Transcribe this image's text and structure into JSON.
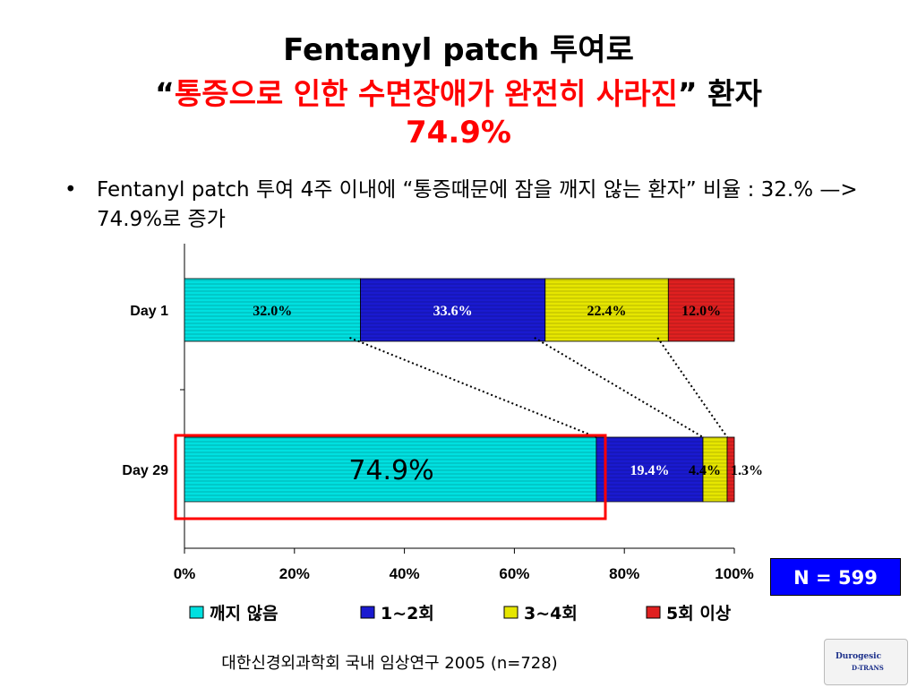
{
  "slide": {
    "title_line1": "Fentanyl patch 투여로",
    "title_line2_open_quote": "“",
    "title_line2_red": "통증으로 인한 수면장애가 완전히 사라진",
    "title_line2_close_quote": "”",
    "title_line2_suffix": " 환자",
    "title_line3": "74.9%",
    "bullet_char": "•",
    "bullet_text": "Fentanyl patch 투여 4주 이내에 “통증때문에 잠을 깨지 않는 환자” 비율 : 32.% —> 74.9%로 증가",
    "n_label": "N = 599",
    "source": "대한신경외과학회 국내 임상연구 2005 (n=728)",
    "logo_text": "Durogesic",
    "logo_sub": "D-TRANS"
  },
  "chart_data": {
    "type": "bar",
    "orientation": "horizontal",
    "stacked": true,
    "categories": [
      "Day 1",
      "Day 29"
    ],
    "series": [
      {
        "name": "깨지 않음",
        "values": [
          32.0,
          74.9
        ],
        "labels": [
          "32.0%",
          "74.9%"
        ],
        "color": "#00e0e0"
      },
      {
        "name": "1~2회",
        "values": [
          33.6,
          19.4
        ],
        "labels": [
          "33.6%",
          "19.4%"
        ],
        "color": "#1a1ad0"
      },
      {
        "name": "3~4회",
        "values": [
          22.4,
          4.4
        ],
        "labels": [
          "22.4%",
          "4.4%"
        ],
        "color": "#e6e600"
      },
      {
        "name": "5회 이상",
        "values": [
          12.0,
          1.3
        ],
        "labels": [
          "12.0%",
          "1.3%"
        ],
        "color": "#e02020"
      }
    ],
    "xlim": [
      0,
      100
    ],
    "xticks": [
      "0%",
      "20%",
      "40%",
      "60%",
      "80%",
      "100%"
    ],
    "legend_placement": "bottom",
    "highlight": {
      "category": "Day 29",
      "series": "깨지 않음",
      "color": "#ff0000"
    }
  }
}
